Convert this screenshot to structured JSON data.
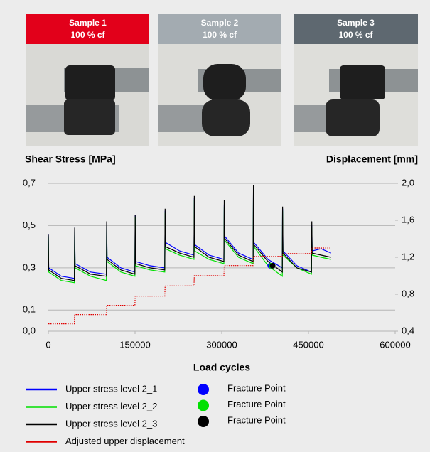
{
  "panels": [
    {
      "title": "Sample 1",
      "subtitle": "100 % cf",
      "color": "#e2001a"
    },
    {
      "title": "Sample 2",
      "subtitle": "100 % cf",
      "color": "#a3abb1"
    },
    {
      "title": "Sample 3",
      "subtitle": "100 % cf",
      "color": "#5e6870"
    }
  ],
  "chart_data": {
    "type": "line",
    "ylabel": "Shear Stress [MPa]",
    "y2label": "Displacement [mm]",
    "xlabel": "Load cycles",
    "x": [
      0,
      600,
      22500,
      45000,
      45600,
      46200,
      73000,
      100400,
      101000,
      101600,
      125500,
      149700,
      150300,
      150900,
      176000,
      201400,
      202000,
      202600,
      227000,
      251900,
      252500,
      253100,
      278000,
      303700,
      304300,
      304900,
      329000,
      354200,
      354800,
      355400,
      380000,
      404700,
      405300,
      405900,
      430000,
      455200,
      455800,
      456400,
      472000,
      489000
    ],
    "xlim": [
      0,
      600000
    ],
    "xticks": [
      0,
      150000,
      300000,
      450000,
      600000
    ],
    "ylim": [
      0,
      0.7
    ],
    "yticks": [
      {
        "value": 0,
        "label": "0,0"
      },
      {
        "value": 0.1,
        "label": "0,1"
      },
      {
        "value": 0.3,
        "label": "0,3"
      },
      {
        "value": 0.5,
        "label": "0,5"
      },
      {
        "value": 0.7,
        "label": "0,7"
      }
    ],
    "y2lim": [
      0.4,
      2.0
    ],
    "y2ticks": [
      {
        "value": 0.4,
        "label": "0,4"
      },
      {
        "value": 0.8,
        "label": "0,8"
      },
      {
        "value": 1.2,
        "label": "1,2"
      },
      {
        "value": 1.6,
        "label": "1,6"
      },
      {
        "value": 2.0,
        "label": "2,0"
      }
    ],
    "grid": true,
    "series": [
      {
        "name": "Upper stress level 2_1",
        "color": "#0000ff",
        "values": [
          0.46,
          0.3,
          0.26,
          0.25,
          0.49,
          0.32,
          0.28,
          0.27,
          0.52,
          0.35,
          0.3,
          0.28,
          0.55,
          0.33,
          0.31,
          0.3,
          0.57,
          0.42,
          0.38,
          0.36,
          0.63,
          0.41,
          0.36,
          0.34,
          0.6,
          0.45,
          0.37,
          0.34,
          0.66,
          0.42,
          0.34,
          0.3,
          0.58,
          0.38,
          0.31,
          0.28,
          0.5,
          0.38,
          0.39,
          0.37
        ]
      },
      {
        "name": "Upper stress level 2_2",
        "color": "#00e000",
        "values": [
          0.45,
          0.28,
          0.24,
          0.23,
          0.48,
          0.3,
          0.26,
          0.24,
          0.51,
          0.33,
          0.28,
          0.26,
          0.54,
          0.31,
          0.29,
          0.28,
          0.56,
          0.39,
          0.36,
          0.34,
          0.62,
          0.38,
          0.34,
          0.32,
          0.59,
          0.43,
          0.35,
          0.32,
          0.65,
          0.4,
          0.31,
          0.26,
          0.57,
          0.36,
          0.3,
          0.27,
          0.49,
          0.36,
          0.35,
          0.34
        ]
      },
      {
        "name": "Upper stress level 2_3",
        "color": "#000000",
        "values": [
          0.46,
          0.29,
          0.25,
          0.24,
          0.49,
          0.31,
          0.27,
          0.26,
          0.52,
          0.34,
          0.29,
          0.27,
          0.55,
          0.32,
          0.3,
          0.29,
          0.58,
          0.4,
          0.37,
          0.35,
          0.64,
          0.4,
          0.35,
          0.33,
          0.62,
          0.44,
          0.36,
          0.33,
          0.69,
          0.41,
          0.33,
          0.28,
          0.59,
          0.37,
          0.3,
          0.28,
          0.52,
          0.37,
          0.36,
          0.35
        ]
      },
      {
        "name": "Adjusted upper displacement",
        "color": "#e00000",
        "axis": "y2",
        "linestyle": "dotted",
        "values": [
          0.48,
          0.48,
          0.48,
          0.48,
          0.58,
          0.58,
          0.58,
          0.58,
          0.68,
          0.68,
          0.68,
          0.68,
          0.78,
          0.78,
          0.78,
          0.78,
          0.89,
          0.89,
          0.89,
          0.89,
          1.0,
          1.0,
          1.0,
          1.0,
          1.11,
          1.11,
          1.11,
          1.11,
          1.21,
          1.21,
          1.21,
          1.21,
          1.24,
          1.24,
          1.24,
          1.24,
          1.3,
          1.3,
          1.3,
          1.3
        ]
      }
    ],
    "fracture_points": [
      {
        "name": "Fracture Point",
        "color": "#0000ff",
        "x": 384000,
        "y": 0.31
      },
      {
        "name": "Fracture Point",
        "color": "#00e000",
        "x": 386000,
        "y": 0.31
      },
      {
        "name": "Fracture Point",
        "color": "#000000",
        "x": 388000,
        "y": 0.31
      }
    ]
  }
}
